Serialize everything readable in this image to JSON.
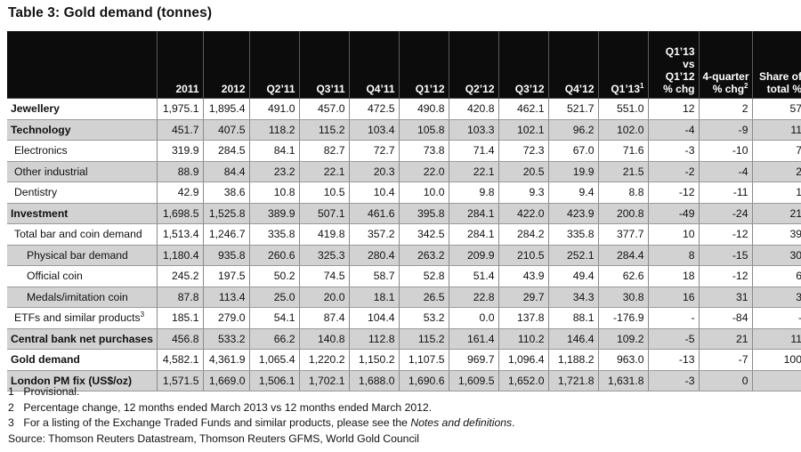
{
  "title": "Table 3: Gold demand (tonnes)",
  "columns": [
    "2011",
    "2012",
    "Q2’11",
    "Q3’11",
    "Q4’11",
    "Q1’12",
    "Q2’12",
    "Q3’12",
    "Q4’12",
    "Q1’13"
  ],
  "columns_sup": [
    "",
    "",
    "",
    "",
    "",
    "",
    "",
    "",
    "",
    "1"
  ],
  "pct_headers": {
    "c1_lines": [
      "Q1’13",
      "vs",
      "Q1’12",
      "% chg"
    ],
    "c2_line1": "4-quarter",
    "c2_line2": "% chg",
    "c2_sup": "2",
    "c3_lines": [
      "Share of",
      "total %"
    ]
  },
  "rows": [
    {
      "label": "Jewellery",
      "sup": "",
      "values": [
        "1,975.1",
        "1,895.4",
        "491.0",
        "457.0",
        "472.5",
        "490.8",
        "420.8",
        "462.1",
        "521.7",
        "551.0",
        "12",
        "2",
        "57"
      ]
    },
    {
      "label": "Technology",
      "sup": "",
      "values": [
        "451.7",
        "407.5",
        "118.2",
        "115.2",
        "103.4",
        "105.8",
        "103.3",
        "102.1",
        "96.2",
        "102.0",
        "-4",
        "-9",
        "11"
      ]
    },
    {
      "label": "Electronics",
      "sup": "",
      "values": [
        "319.9",
        "284.5",
        "84.1",
        "82.7",
        "72.7",
        "73.8",
        "71.4",
        "72.3",
        "67.0",
        "71.6",
        "-3",
        "-10",
        "7"
      ]
    },
    {
      "label": "Other industrial",
      "sup": "",
      "values": [
        "88.9",
        "84.4",
        "23.2",
        "22.1",
        "20.3",
        "22.0",
        "22.1",
        "20.5",
        "19.9",
        "21.5",
        "-2",
        "-4",
        "2"
      ]
    },
    {
      "label": "Dentistry",
      "sup": "",
      "values": [
        "42.9",
        "38.6",
        "10.8",
        "10.5",
        "10.4",
        "10.0",
        "9.8",
        "9.3",
        "9.4",
        "8.8",
        "-12",
        "-11",
        "1"
      ]
    },
    {
      "label": "Investment",
      "sup": "",
      "values": [
        "1,698.5",
        "1,525.8",
        "389.9",
        "507.1",
        "461.6",
        "395.8",
        "284.1",
        "422.0",
        "423.9",
        "200.8",
        "-49",
        "-24",
        "21"
      ]
    },
    {
      "label": "Total bar and coin demand",
      "sup": "",
      "values": [
        "1,513.4",
        "1,246.7",
        "335.8",
        "419.8",
        "357.2",
        "342.5",
        "284.1",
        "284.2",
        "335.8",
        "377.7",
        "10",
        "-12",
        "39"
      ]
    },
    {
      "label": "Physical bar demand",
      "sup": "",
      "values": [
        "1,180.4",
        "935.8",
        "260.6",
        "325.3",
        "280.4",
        "263.2",
        "209.9",
        "210.5",
        "252.1",
        "284.4",
        "8",
        "-15",
        "30"
      ]
    },
    {
      "label": "Official coin",
      "sup": "",
      "values": [
        "245.2",
        "197.5",
        "50.2",
        "74.5",
        "58.7",
        "52.8",
        "51.4",
        "43.9",
        "49.4",
        "62.6",
        "18",
        "-12",
        "6"
      ]
    },
    {
      "label": "Medals/imitation coin",
      "sup": "",
      "values": [
        "87.8",
        "113.4",
        "25.0",
        "20.0",
        "18.1",
        "26.5",
        "22.8",
        "29.7",
        "34.3",
        "30.8",
        "16",
        "31",
        "3"
      ]
    },
    {
      "label": "ETFs and similar products",
      "sup": "3",
      "values": [
        "185.1",
        "279.0",
        "54.1",
        "87.4",
        "104.4",
        "53.2",
        "0.0",
        "137.8",
        "88.1",
        "-176.9",
        "-",
        "-84",
        "-"
      ]
    },
    {
      "label": "Central bank net purchases",
      "sup": "",
      "values": [
        "456.8",
        "533.2",
        "66.2",
        "140.8",
        "112.8",
        "115.2",
        "161.4",
        "110.2",
        "146.4",
        "109.2",
        "-5",
        "21",
        "11"
      ]
    },
    {
      "label": "Gold demand",
      "sup": "",
      "values": [
        "4,582.1",
        "4,361.9",
        "1,065.4",
        "1,220.2",
        "1,150.2",
        "1,107.5",
        "969.7",
        "1,096.4",
        "1,188.2",
        "963.0",
        "-13",
        "-7",
        "100"
      ]
    },
    {
      "label": "London PM fix (US$/oz)",
      "sup": "",
      "values": [
        "1,571.5",
        "1,669.0",
        "1,506.1",
        "1,702.1",
        "1,688.0",
        "1,690.6",
        "1,609.5",
        "1,652.0",
        "1,721.8",
        "1,631.8",
        "-3",
        "0",
        ""
      ]
    }
  ],
  "footnotes": [
    {
      "num": "1",
      "text": "Provisional.",
      "italic": "",
      "after": ""
    },
    {
      "num": "2",
      "text": "Percentage change, 12 months ended March 2013 vs 12 months ended March 2012.",
      "italic": "",
      "after": ""
    },
    {
      "num": "3",
      "text": "For a listing of the Exchange Traded Funds and similar products, please see the ",
      "italic": "Notes and definitions",
      "after": "."
    }
  ],
  "source": "Source: Thomson Reuters Datastream, Thomson Reuters GFMS, World Gold Council",
  "colors": {
    "header_bg": "#0c0c0c",
    "shade": "#d2d2d2"
  }
}
